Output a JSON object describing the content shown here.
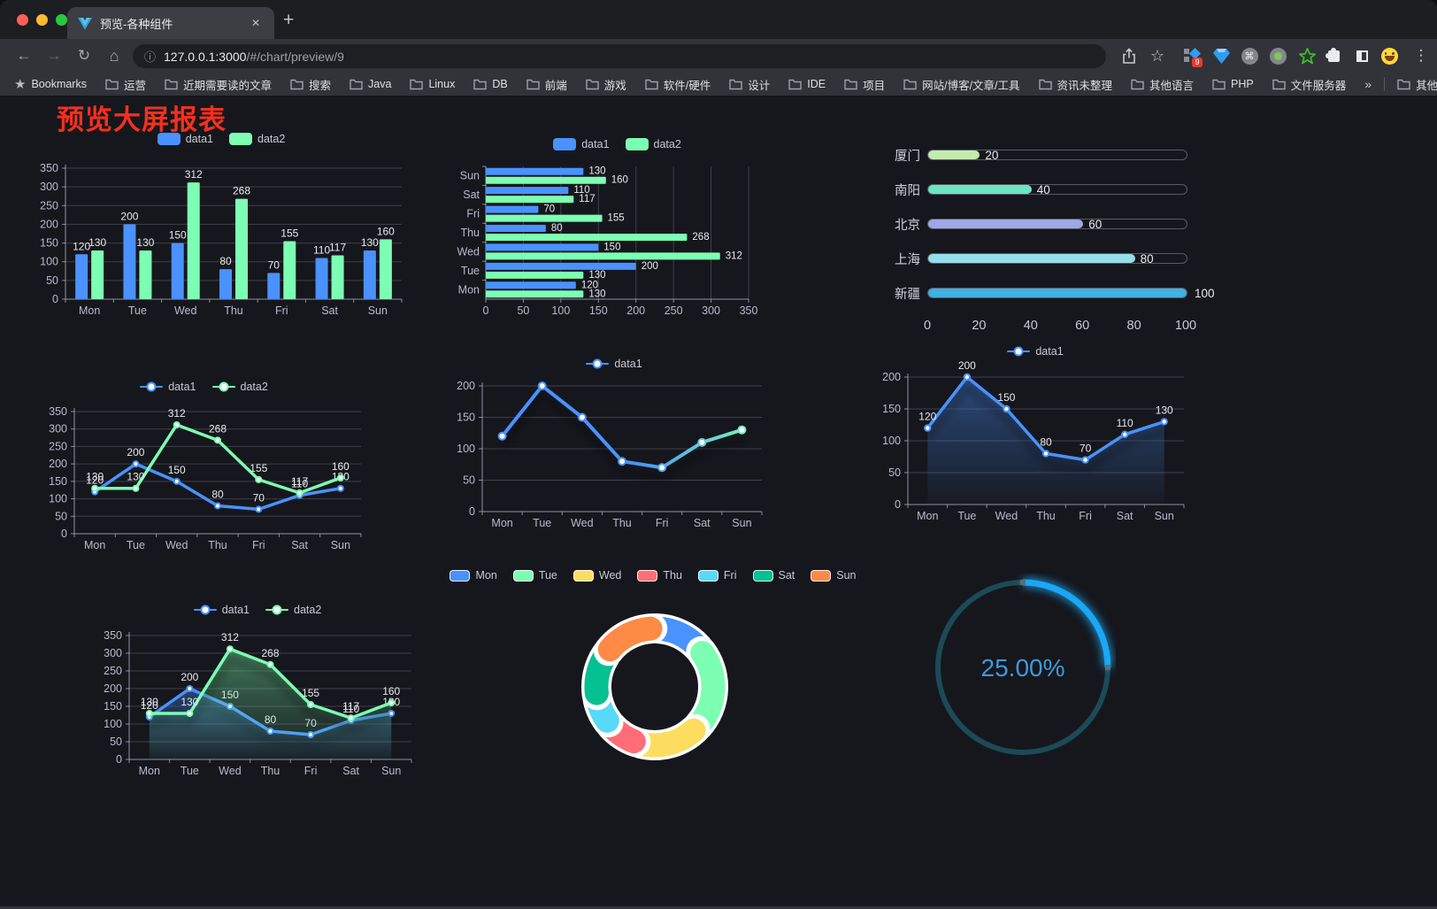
{
  "browser": {
    "traffic_lights": {
      "close": "#ff5f57",
      "minimize": "#febc2e",
      "zoom": "#28c840"
    },
    "tab": {
      "title": "预览-各种组件",
      "close_glyph": "✕"
    },
    "new_tab_glyph": "+",
    "nav": {
      "back": "←",
      "forward": "→",
      "reload": "↻",
      "home": "⌂"
    },
    "url": {
      "host": "127.0.0.1:3000",
      "path": "/#/chart/preview/9"
    },
    "omnibox_info_glyph": "ⓘ",
    "share_glyph": "⇪",
    "star_glyph": "☆",
    "extension_badge": "9",
    "cmd_glyph": "⌘",
    "menu_glyph": "⋮",
    "bookmarks_label": "Bookmarks",
    "bookmarks": [
      "运营",
      "近期需要读的文章",
      "搜索",
      "Java",
      "Linux",
      "DB",
      "前端",
      "游戏",
      "软件/硬件",
      "设计",
      "IDE",
      "项目",
      "网站/博客/文章/工具",
      "资讯未整理",
      "其他语言",
      "PHP",
      "文件服务器"
    ],
    "bookmarks_overflow": "»",
    "other_bookmarks": "其他书签"
  },
  "page": {
    "title": "预览大屏报表",
    "title_color": "#f5301d",
    "background": "#16171d"
  },
  "chart_data": [
    {
      "id": "bar-grouped",
      "type": "bar",
      "categories": [
        "Mon",
        "Tue",
        "Wed",
        "Thu",
        "Fri",
        "Sat",
        "Sun"
      ],
      "series": [
        {
          "name": "data1",
          "color": "#4992ff",
          "values": [
            120,
            200,
            150,
            80,
            70,
            110,
            130
          ]
        },
        {
          "name": "data2",
          "color": "#7cffb2",
          "values": [
            130,
            130,
            312,
            268,
            155,
            117,
            160
          ]
        }
      ],
      "ylim": [
        0,
        350
      ],
      "ytick_step": 50,
      "grid": true,
      "legend_position": "top",
      "labels": true
    },
    {
      "id": "bar-horizontal",
      "type": "bar",
      "orientation": "horizontal",
      "categories": [
        "Mon",
        "Tue",
        "Wed",
        "Thu",
        "Fri",
        "Sat",
        "Sun"
      ],
      "series": [
        {
          "name": "data1",
          "color": "#4992ff",
          "values": [
            120,
            200,
            150,
            80,
            70,
            110,
            130
          ]
        },
        {
          "name": "data2",
          "color": "#7cffb2",
          "values": [
            130,
            130,
            312,
            268,
            155,
            117,
            160
          ]
        }
      ],
      "xlim": [
        0,
        350
      ],
      "xtick_step": 50,
      "grid": true,
      "legend_position": "top",
      "labels": true
    },
    {
      "id": "progress-bars",
      "type": "bar",
      "orientation": "horizontal-progress",
      "items": [
        {
          "label": "厦门",
          "value": 20,
          "color": "#c4ebad"
        },
        {
          "label": "南阳",
          "value": 40,
          "color": "#6be6c1"
        },
        {
          "label": "北京",
          "value": 60,
          "color": "#a0a7e6"
        },
        {
          "label": "上海",
          "value": 80,
          "color": "#96dee8"
        },
        {
          "label": "新疆",
          "value": 100,
          "color": "#3fb1e3"
        }
      ],
      "xlim": [
        0,
        100
      ],
      "xticks": [
        0,
        20,
        40,
        60,
        80,
        100
      ]
    },
    {
      "id": "line-two",
      "type": "line",
      "categories": [
        "Mon",
        "Tue",
        "Wed",
        "Thu",
        "Fri",
        "Sat",
        "Sun"
      ],
      "series": [
        {
          "name": "data1",
          "color": "#4992ff",
          "values": [
            120,
            200,
            150,
            80,
            70,
            110,
            130
          ]
        },
        {
          "name": "data2",
          "color": "#7cffb2",
          "values": [
            130,
            130,
            312,
            268,
            155,
            117,
            160
          ]
        }
      ],
      "ylim": [
        0,
        350
      ],
      "ytick_step": 50,
      "labels": true,
      "legend_position": "top"
    },
    {
      "id": "line-gradient",
      "type": "line",
      "categories": [
        "Mon",
        "Tue",
        "Wed",
        "Thu",
        "Fri",
        "Sat",
        "Sun"
      ],
      "series": [
        {
          "name": "data1",
          "gradient": [
            "#4992ff",
            "#7cffb2"
          ],
          "color": "#4992ff",
          "values": [
            120,
            200,
            150,
            80,
            70,
            110,
            130
          ],
          "shadow": true
        }
      ],
      "ylim": [
        0,
        200
      ],
      "ytick_step": 50,
      "labels": false,
      "legend_position": "top"
    },
    {
      "id": "line-area",
      "type": "area",
      "categories": [
        "Mon",
        "Tue",
        "Wed",
        "Thu",
        "Fri",
        "Sat",
        "Sun"
      ],
      "series": [
        {
          "name": "data1",
          "color": "#4992ff",
          "values": [
            120,
            200,
            150,
            80,
            70,
            110,
            130
          ],
          "area": true,
          "shadow": true
        }
      ],
      "ylim": [
        0,
        200
      ],
      "ytick_step": 50,
      "labels": true,
      "legend_position": "top"
    },
    {
      "id": "line-two-area",
      "type": "area",
      "categories": [
        "Mon",
        "Tue",
        "Wed",
        "Thu",
        "Fri",
        "Sat",
        "Sun"
      ],
      "series": [
        {
          "name": "data1",
          "color": "#4992ff",
          "values": [
            120,
            200,
            150,
            80,
            70,
            110,
            130
          ],
          "area": true,
          "shadow": true
        },
        {
          "name": "data2",
          "color": "#7cffb2",
          "values": [
            130,
            130,
            312,
            268,
            155,
            117,
            160
          ],
          "area": true,
          "shadow": true
        }
      ],
      "ylim": [
        0,
        350
      ],
      "ytick_step": 50,
      "labels": true,
      "legend_position": "top"
    },
    {
      "id": "donut",
      "type": "pie",
      "legend_position": "top",
      "items": [
        {
          "label": "Mon",
          "value": 120,
          "color": "#4992ff"
        },
        {
          "label": "Tue",
          "value": 200,
          "color": "#7cffb2"
        },
        {
          "label": "Wed",
          "value": 150,
          "color": "#fddd60"
        },
        {
          "label": "Thu",
          "value": 80,
          "color": "#ff6e76"
        },
        {
          "label": "Fri",
          "value": 70,
          "color": "#58d9f9"
        },
        {
          "label": "Sat",
          "value": 110,
          "color": "#05c091"
        },
        {
          "label": "Sun",
          "value": 130,
          "color": "#ff8a45"
        }
      ],
      "inner_radius_pct": 62,
      "rounded_segments": true
    },
    {
      "id": "gauge",
      "type": "gauge",
      "value": 25,
      "label": "25.00%",
      "progress_color": "#1aa7f5",
      "track_color": "#1c4a56",
      "text_color": "#4099d8"
    }
  ]
}
